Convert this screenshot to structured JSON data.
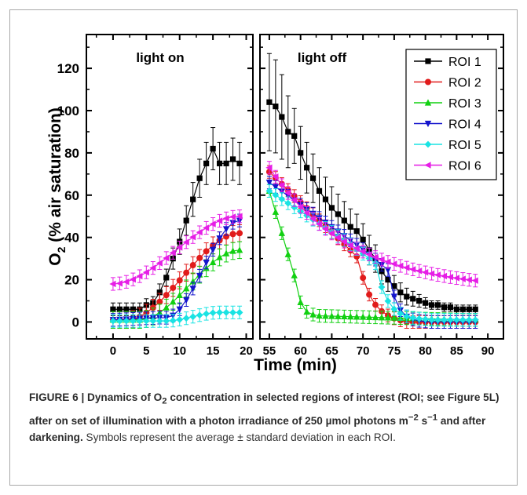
{
  "chart_data": {
    "type": "scatter",
    "xlabel": "Time (min)",
    "ylabel_parts": {
      "pre": "O",
      "sub": "2",
      "post": " (% air saturation)"
    },
    "ylim": [
      -8,
      136
    ],
    "yticks": [
      0,
      20,
      40,
      60,
      80,
      100,
      120
    ],
    "panels": [
      {
        "xlim": [
          -4,
          21
        ],
        "xticks": [
          0,
          5,
          10,
          15,
          20
        ],
        "annotation": "light on"
      },
      {
        "xlim": [
          53.5,
          92.5
        ],
        "xticks": [
          55,
          60,
          65,
          70,
          75,
          80,
          85,
          90
        ],
        "annotation": "light off"
      }
    ],
    "series": [
      {
        "name": "ROI 1",
        "color": "#000000",
        "marker": "square",
        "err_on": [
          3,
          3,
          3,
          3,
          3,
          3,
          3,
          4,
          4,
          5,
          6,
          7,
          8,
          9,
          10,
          10,
          10,
          10,
          10,
          10
        ],
        "err_off": [
          23,
          22,
          20,
          17
        ]
      },
      {
        "name": "ROI 2",
        "color": "#e11b1b",
        "marker": "circle",
        "err_on": 4,
        "err_off": 3
      },
      {
        "name": "ROI 3",
        "color": "#11d011",
        "marker": "triangle-up",
        "err_on": 4,
        "err_off": 3
      },
      {
        "name": "ROI 4",
        "color": "#1414cc",
        "marker": "triangle-down",
        "err_on": 3,
        "err_off": 3
      },
      {
        "name": "ROI 5",
        "color": "#19e3e3",
        "marker": "diamond",
        "err_on": 3,
        "err_off": 3
      },
      {
        "name": "ROI 6",
        "color": "#e61ee6",
        "marker": "triangle-left",
        "err_on": 3,
        "err_off": 3
      }
    ],
    "legend": {
      "position": "top-right"
    },
    "grid": false
  },
  "caption": {
    "figure_label": "FIGURE 6 | Dynamics of O",
    "figure_sub": "2",
    "figure_title": " concentration in selected regions of interest (ROI; see Figure 5L) after on set of illumination with a photon irradiance of 250 µmol photons m",
    "sup1": "−2",
    "mid": " s",
    "sup2": "−1",
    "tail": " and after darkening.",
    "body": " Symbols represent the average ± standard deviation in each ROI."
  }
}
